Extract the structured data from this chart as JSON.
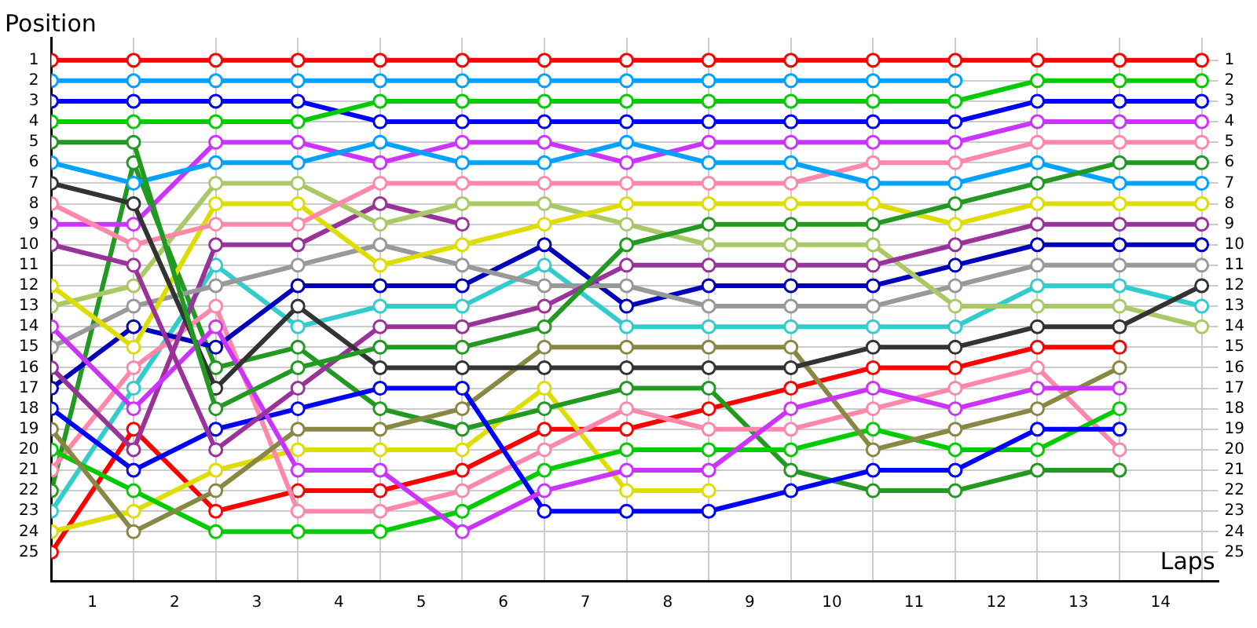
{
  "chart_data": {
    "type": "line",
    "xlabel": "Laps",
    "ylabel": "Position",
    "x": [
      0,
      1,
      2,
      3,
      4,
      5,
      6,
      7,
      8,
      9,
      10,
      11,
      12,
      13,
      14
    ],
    "xlim": [
      0,
      14.2
    ],
    "xticks": [
      {
        "value": 0,
        "label": null
      },
      {
        "value": 0.5,
        "label": "1"
      },
      {
        "value": 1,
        "label": null
      },
      {
        "value": 1.5,
        "label": "2"
      },
      {
        "value": 2,
        "label": null
      },
      {
        "value": 2.5,
        "label": "3"
      },
      {
        "value": 3,
        "label": null
      },
      {
        "value": 3.5,
        "label": "4"
      },
      {
        "value": 4,
        "label": null
      },
      {
        "value": 4.5,
        "label": "5"
      },
      {
        "value": 5,
        "label": null
      },
      {
        "value": 5.5,
        "label": "6"
      },
      {
        "value": 6,
        "label": null
      },
      {
        "value": 6.5,
        "label": "7"
      },
      {
        "value": 7,
        "label": null
      },
      {
        "value": 7.5,
        "label": "8"
      },
      {
        "value": 8,
        "label": null
      },
      {
        "value": 8.5,
        "label": "9"
      },
      {
        "value": 9,
        "label": null
      },
      {
        "value": 9.5,
        "label": "10"
      },
      {
        "value": 10,
        "label": null
      },
      {
        "value": 10.5,
        "label": "11"
      },
      {
        "value": 11,
        "label": null
      },
      {
        "value": 11.5,
        "label": "12"
      },
      {
        "value": 12,
        "label": null
      },
      {
        "value": 12.5,
        "label": "13"
      },
      {
        "value": 13,
        "label": null
      },
      {
        "value": 13.5,
        "label": "14"
      },
      {
        "value": 14,
        "label": null
      }
    ],
    "ylim": [
      26.4,
      -0.1
    ],
    "yticks": [
      1,
      2,
      3,
      4,
      5,
      6,
      7,
      8,
      9,
      10,
      11,
      12,
      13,
      14,
      15,
      16,
      17,
      18,
      19,
      20,
      21,
      22,
      23,
      24,
      25
    ],
    "y2lim": [
      26.4,
      -0.1
    ],
    "y2ticks": [
      1,
      2,
      3,
      4,
      5,
      6,
      7,
      8,
      9,
      10,
      11,
      12,
      13,
      14,
      15,
      16,
      17,
      18,
      19,
      20,
      21,
      22,
      23,
      24,
      25
    ],
    "grid": true,
    "legend": false,
    "marker": "circle",
    "line_style": "solid",
    "series": [
      {
        "color": "#ff0000",
        "values": [
          1,
          1,
          1,
          1,
          1,
          1,
          1,
          1,
          1,
          1,
          1,
          1,
          1,
          1,
          1
        ]
      },
      {
        "color": "#00a2ff",
        "values": [
          2,
          2,
          2,
          2,
          2,
          2,
          2,
          2,
          2,
          2,
          2,
          2,
          null,
          null,
          null
        ]
      },
      {
        "color": "#00cc00",
        "values": [
          4,
          4,
          4,
          4,
          3,
          3,
          3,
          3,
          3,
          3,
          3,
          3,
          2,
          2,
          2
        ]
      },
      {
        "color": "#0000ff",
        "values": [
          3,
          3,
          3,
          3,
          4,
          4,
          4,
          4,
          4,
          4,
          4,
          4,
          3,
          3,
          3
        ]
      },
      {
        "color": "#229922",
        "values": [
          5,
          5,
          18,
          16,
          15,
          15,
          14,
          10,
          9,
          9,
          9,
          8,
          7,
          6,
          6
        ]
      },
      {
        "color": "#00a2ff",
        "values": [
          6,
          7,
          6,
          6,
          5,
          6,
          6,
          5,
          6,
          6,
          7,
          7,
          6,
          7,
          7
        ]
      },
      {
        "color": "#333333",
        "values": [
          7,
          8,
          17,
          13,
          16,
          16,
          16,
          16,
          16,
          16,
          15,
          15,
          14,
          14,
          12
        ]
      },
      {
        "color": "#ff88aa",
        "values": [
          8,
          10,
          9,
          9,
          7,
          7,
          7,
          7,
          7,
          7,
          6,
          6,
          5,
          5,
          5
        ]
      },
      {
        "color": "#cc33ff",
        "values": [
          9,
          9,
          5,
          5,
          6,
          5,
          5,
          6,
          5,
          5,
          5,
          5,
          4,
          4,
          4
        ]
      },
      {
        "color": "#993399",
        "values": [
          10,
          11,
          20,
          17,
          14,
          14,
          13,
          11,
          11,
          11,
          11,
          10,
          9,
          9,
          9
        ]
      },
      {
        "color": "#dddd00",
        "values": [
          12,
          15,
          8,
          8,
          11,
          10,
          9,
          8,
          8,
          8,
          8,
          9,
          8,
          8,
          8
        ]
      },
      {
        "color": "#aac866",
        "values": [
          13,
          12,
          7,
          7,
          9,
          8,
          8,
          9,
          10,
          10,
          10,
          13,
          13,
          13,
          14
        ]
      },
      {
        "color": "#cc33ff",
        "values": [
          14,
          18,
          14,
          21,
          21,
          24,
          22,
          21,
          21,
          18,
          17,
          18,
          17,
          17,
          null
        ]
      },
      {
        "color": "#999999",
        "values": [
          15,
          13,
          12,
          11,
          10,
          11,
          12,
          12,
          13,
          13,
          13,
          12,
          11,
          11,
          11
        ]
      },
      {
        "color": "#993399",
        "values": [
          16,
          20,
          10,
          10,
          8,
          9,
          null,
          null,
          null,
          null,
          null,
          null,
          null,
          null,
          null
        ]
      },
      {
        "color": "#0000bb",
        "values": [
          17,
          14,
          15,
          12,
          12,
          12,
          10,
          13,
          12,
          12,
          12,
          11,
          10,
          10,
          10
        ]
      },
      {
        "color": "#0000ff",
        "values": [
          18,
          21,
          19,
          18,
          17,
          17,
          23,
          23,
          23,
          22,
          21,
          21,
          19,
          19,
          null
        ]
      },
      {
        "color": "#888844",
        "values": [
          19,
          24,
          22,
          19,
          19,
          18,
          15,
          15,
          15,
          15,
          20,
          19,
          18,
          16,
          null
        ]
      },
      {
        "color": "#00cc00",
        "values": [
          20,
          22,
          24,
          24,
          24,
          23,
          21,
          20,
          20,
          20,
          19,
          20,
          20,
          18,
          null
        ]
      },
      {
        "color": "#ff88aa",
        "values": [
          21,
          16,
          13,
          23,
          23,
          22,
          20,
          18,
          19,
          19,
          18,
          17,
          16,
          20,
          null
        ]
      },
      {
        "color": "#229922",
        "values": [
          22,
          6,
          16,
          15,
          18,
          19,
          18,
          17,
          17,
          21,
          22,
          22,
          21,
          21,
          null
        ]
      },
      {
        "color": "#33cccc",
        "values": [
          23,
          17,
          11,
          14,
          13,
          13,
          11,
          14,
          14,
          14,
          14,
          14,
          12,
          12,
          13
        ]
      },
      {
        "color": "#dddd00",
        "values": [
          24,
          23,
          21,
          20,
          20,
          20,
          17,
          22,
          22,
          null,
          null,
          null,
          null,
          null,
          null
        ]
      },
      {
        "color": "#ff0000",
        "values": [
          25,
          19,
          23,
          22,
          22,
          21,
          19,
          19,
          18,
          17,
          16,
          16,
          15,
          15,
          null
        ]
      }
    ]
  }
}
